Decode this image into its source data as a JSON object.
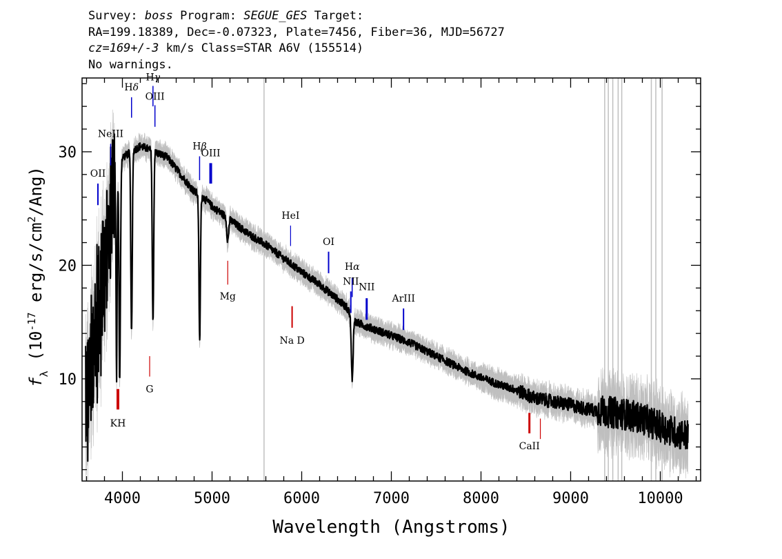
{
  "header": {
    "line1_a": "Survey: ",
    "line1_b": "boss",
    "line1_c": " Program: ",
    "line1_d": "SEGUE_GES",
    "line1_e": " Target:",
    "line2": "RA=199.18389, Dec=-0.07323, Plate=7456, Fiber=36, MJD=56727",
    "line3_a": "cz=169+/-3",
    "line3_b": " km/s Class=STAR A6V (155514)",
    "line4": "No warnings."
  },
  "chart_data": {
    "type": "line",
    "xlabel": "Wavelength (Angstroms)",
    "ylabel_f": "f",
    "ylabel_sub": "λ",
    "ylabel_a": " (10",
    "ylabel_exp": "-17",
    "ylabel_b": " erg/s/cm",
    "ylabel_exp2": "2",
    "ylabel_c": "/Ang)",
    "xlim": [
      3550,
      10450
    ],
    "ylim": [
      1,
      36.5
    ],
    "xticks": [
      4000,
      5000,
      6000,
      7000,
      8000,
      9000,
      10000
    ],
    "yticks": [
      10,
      20,
      30
    ],
    "colors": {
      "flux": "#000000",
      "error": "#bfbfbf",
      "emission": "#0000cc",
      "absorption": "#cc0000"
    },
    "continuum": [
      [
        3600,
        7.5
      ],
      [
        3700,
        14
      ],
      [
        3800,
        20
      ],
      [
        3900,
        27
      ],
      [
        4000,
        29.5
      ],
      [
        4100,
        30
      ],
      [
        4200,
        30.5
      ],
      [
        4300,
        30.2
      ],
      [
        4500,
        29.5
      ],
      [
        4700,
        27.5
      ],
      [
        4800,
        26.5
      ],
      [
        4900,
        26
      ],
      [
        5000,
        25.2
      ],
      [
        5200,
        24
      ],
      [
        5400,
        22.8
      ],
      [
        5600,
        21.8
      ],
      [
        5800,
        20.6
      ],
      [
        6000,
        19.4
      ],
      [
        6200,
        18.3
      ],
      [
        6400,
        17
      ],
      [
        6500,
        16.3
      ],
      [
        6600,
        15
      ],
      [
        6700,
        14.7
      ],
      [
        6800,
        14.4
      ],
      [
        7000,
        13.8
      ],
      [
        7200,
        13.2
      ],
      [
        7400,
        12.4
      ],
      [
        7600,
        11.6
      ],
      [
        7800,
        10.8
      ],
      [
        8000,
        10.1
      ],
      [
        8200,
        9.5
      ],
      [
        8400,
        9
      ],
      [
        8600,
        8.3
      ],
      [
        8800,
        8
      ],
      [
        9000,
        7.7
      ],
      [
        9200,
        7.3
      ],
      [
        9400,
        7.1
      ],
      [
        9600,
        6.9
      ],
      [
        9800,
        6.5
      ],
      [
        10000,
        5.8
      ],
      [
        10200,
        5.2
      ],
      [
        10300,
        5
      ]
    ],
    "absorption_features": [
      [
        3935,
        18,
        6
      ],
      [
        3970,
        19,
        8
      ],
      [
        4102,
        16,
        8
      ],
      [
        4341,
        15,
        8
      ],
      [
        4862,
        13,
        8
      ],
      [
        5175,
        2,
        10
      ],
      [
        6563,
        5.5,
        10
      ]
    ],
    "grey_vlines": [
      5580,
      9380,
      9420,
      9470,
      9530,
      9570,
      9900,
      9950,
      10020
    ],
    "line_markers": [
      {
        "label": "OII",
        "x": 3727,
        "y1": 25.3,
        "y2": 27.2,
        "ly": 27.8,
        "color": "emission",
        "sub": "",
        "lw": 2
      },
      {
        "label": "NeIII",
        "x": 3869,
        "y1": 28.8,
        "y2": 30.7,
        "ly": 31.3,
        "color": "emission",
        "sub": "",
        "lw": 1.5
      },
      {
        "label": "H",
        "x": 4102,
        "y1": 33,
        "y2": 34.8,
        "ly": 35.4,
        "color": "emission",
        "sub": "δ",
        "lw": 1.5
      },
      {
        "label": "H",
        "x": 4341,
        "y1": 34,
        "y2": 35.8,
        "ly": 36.3,
        "color": "emission",
        "sub": "γ",
        "lw": 1.5
      },
      {
        "label": "OIII",
        "x": 4363,
        "y1": 32.2,
        "y2": 34.1,
        "ly": 34.6,
        "color": "emission",
        "sub": "",
        "lw": 1.5
      },
      {
        "label": "H",
        "x": 4861,
        "y1": 27.5,
        "y2": 29.6,
        "ly": 30.2,
        "color": "emission",
        "sub": "β",
        "lw": 1.5
      },
      {
        "label": "OIII",
        "x": 4985,
        "y1": 27.2,
        "y2": 29,
        "ly": 29.6,
        "color": "emission",
        "sub": "",
        "lw": 4
      },
      {
        "label": "HeI",
        "x": 5876,
        "y1": 21.7,
        "y2": 23.5,
        "ly": 24.1,
        "color": "emission",
        "sub": "",
        "lw": 1.2
      },
      {
        "label": "OI",
        "x": 6300,
        "y1": 19.3,
        "y2": 21.2,
        "ly": 21.8,
        "color": "emission",
        "sub": "",
        "lw": 2
      },
      {
        "label": "H",
        "x": 6563,
        "y1": 17.2,
        "y2": 18.9,
        "ly": 19.6,
        "color": "emission",
        "sub": "α",
        "lw": 1.5
      },
      {
        "label": "NII",
        "x": 6548,
        "y1": 15.8,
        "y2": 17.7,
        "ly": 18.3,
        "color": "emission",
        "sub": "",
        "lw": 2
      },
      {
        "label": "NII",
        "x": 6725,
        "y1": 15.2,
        "y2": 17.1,
        "ly": 17.8,
        "color": "emission",
        "sub": "",
        "lw": 3
      },
      {
        "label": "ArIII",
        "x": 7136,
        "y1": 14.3,
        "y2": 16.2,
        "ly": 16.8,
        "color": "emission",
        "sub": "",
        "lw": 2
      },
      {
        "label": "Mg",
        "x": 5175,
        "y1": 18.3,
        "y2": 20.4,
        "ly": 17,
        "color": "absorption",
        "sub": "",
        "lw": 1.2
      },
      {
        "label": "Na D",
        "x": 5893,
        "y1": 14.5,
        "y2": 16.4,
        "ly": 13.1,
        "color": "absorption",
        "sub": "",
        "lw": 2
      },
      {
        "label": "G",
        "x": 4304,
        "y1": 10.2,
        "y2": 12,
        "ly": 8.8,
        "color": "absorption",
        "sub": "",
        "lw": 1.2
      },
      {
        "label": "KH",
        "x": 3950,
        "y1": 7.3,
        "y2": 9.1,
        "ly": 5.8,
        "color": "absorption",
        "sub": "",
        "lw": 4
      },
      {
        "label": "CaII",
        "x": 8540,
        "y1": 5.2,
        "y2": 7,
        "ly": 3.8,
        "color": "absorption",
        "sub": "",
        "lw": 3
      },
      {
        "label": "",
        "x": 8662,
        "y1": 4.7,
        "y2": 6.5,
        "ly": 0,
        "color": "absorption",
        "sub": "",
        "lw": 1.2
      }
    ]
  }
}
